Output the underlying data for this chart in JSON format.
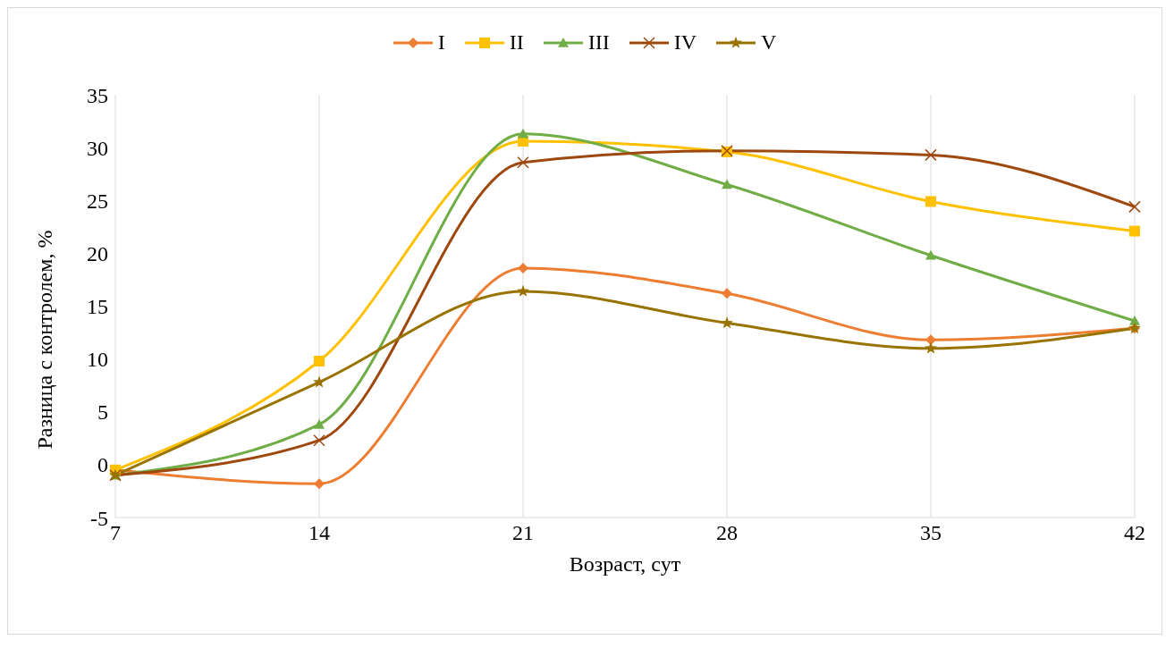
{
  "chart_data": {
    "type": "line",
    "xlabel": "Возраст, сут",
    "ylabel": "Разница с контролем, %",
    "categories": [
      "7",
      "14",
      "21",
      "28",
      "35",
      "42"
    ],
    "ylim": [
      -5,
      35
    ],
    "yticks": [
      -5,
      0,
      5,
      10,
      15,
      20,
      25,
      30,
      35
    ],
    "grid": "x",
    "legend": "top",
    "series": [
      {
        "name": "I",
        "color": "#ed7d31",
        "marker": "diamond",
        "values": [
          -0.5,
          -1.8,
          18.6,
          16.2,
          11.8,
          12.9
        ]
      },
      {
        "name": "II",
        "color": "#ffc000",
        "marker": "square",
        "values": [
          -0.5,
          9.8,
          30.6,
          29.6,
          24.9,
          22.1
        ]
      },
      {
        "name": "III",
        "color": "#70ad47",
        "marker": "triangle",
        "values": [
          -1.0,
          3.8,
          31.3,
          26.5,
          19.8,
          13.6
        ]
      },
      {
        "name": "IV",
        "color": "#9e480e",
        "marker": "cross",
        "values": [
          -1.0,
          2.3,
          28.6,
          29.7,
          29.3,
          24.4
        ]
      },
      {
        "name": "V",
        "color": "#997300",
        "marker": "star",
        "values": [
          -1.0,
          7.8,
          16.4,
          13.4,
          11.0,
          12.9
        ]
      }
    ]
  }
}
